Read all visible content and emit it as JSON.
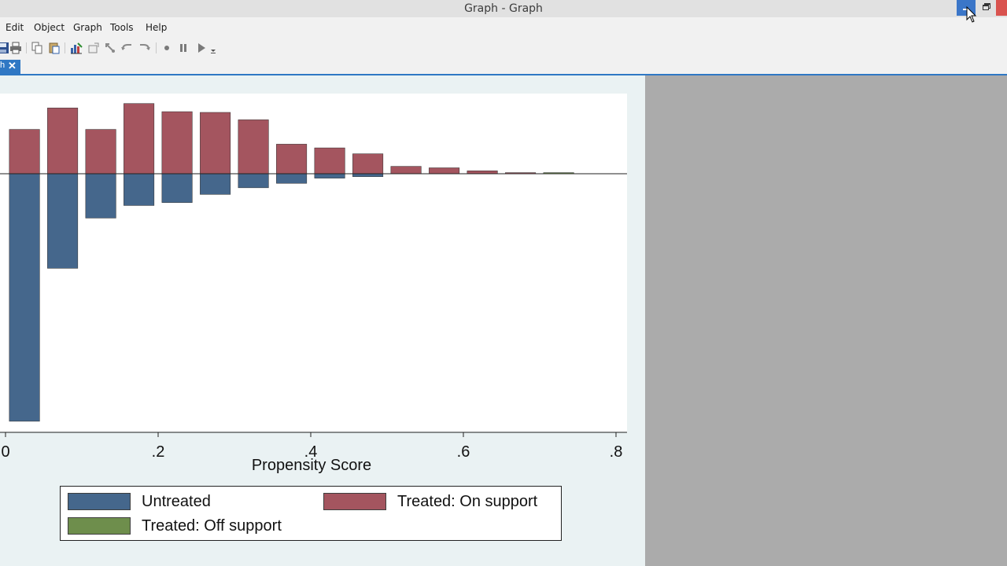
{
  "window": {
    "title": "Graph - Graph"
  },
  "menu": {
    "items": [
      "Edit",
      "Object",
      "Graph",
      "Tools",
      "Help"
    ]
  },
  "toolbar": {
    "icons": [
      "save-icon",
      "print-icon",
      "copy-icon",
      "paste-icon",
      "graph-editor-icon",
      "select-icon",
      "pointer-icon",
      "undo-icon",
      "redo-icon",
      "record-icon",
      "pause-icon",
      "play-icon",
      "dropdown-arrow-icon"
    ]
  },
  "tab": {
    "label": "h",
    "close_glyph": "✕"
  },
  "colors": {
    "untreated": "#45678c",
    "treated_on": "#a4555f",
    "treated_off": "#6e8e4c",
    "plot_bg": "#ffffff",
    "graph_bg": "#eaf2f3"
  },
  "chart_data": {
    "type": "bar",
    "subtype": "mirrored-histogram",
    "xlabel": "Propensity Score",
    "x_ticks": [
      0,
      0.2,
      0.4,
      0.6,
      0.8
    ],
    "x_tick_labels": [
      "0",
      ".2",
      ".4",
      ".6",
      ".8"
    ],
    "xlim": [
      0,
      0.8
    ],
    "bin_width": 0.05,
    "ylim": [
      -3.35,
      1.0
    ],
    "y_axis_labels": "none visible",
    "bins_start": [
      0.005,
      0.055,
      0.105,
      0.155,
      0.205,
      0.255,
      0.305,
      0.355,
      0.405,
      0.455,
      0.505,
      0.555,
      0.605,
      0.655,
      0.705
    ],
    "series": [
      {
        "name": "Untreated",
        "values": [
          -3.35,
          -1.28,
          -0.6,
          -0.43,
          -0.39,
          -0.28,
          -0.19,
          -0.13,
          -0.06,
          -0.04,
          0,
          0,
          0,
          0,
          0
        ]
      },
      {
        "name": "Treated: On support",
        "values": [
          0.6,
          0.89,
          0.6,
          0.95,
          0.84,
          0.83,
          0.73,
          0.4,
          0.35,
          0.27,
          0.1,
          0.08,
          0.04,
          0.015,
          0
        ]
      },
      {
        "name": "Treated: Off support",
        "values": [
          0,
          0,
          0,
          0,
          0,
          0,
          0,
          0,
          0,
          0,
          0,
          0,
          0,
          0,
          0.015
        ]
      }
    ],
    "legend_position": "bottom",
    "grid": false
  }
}
